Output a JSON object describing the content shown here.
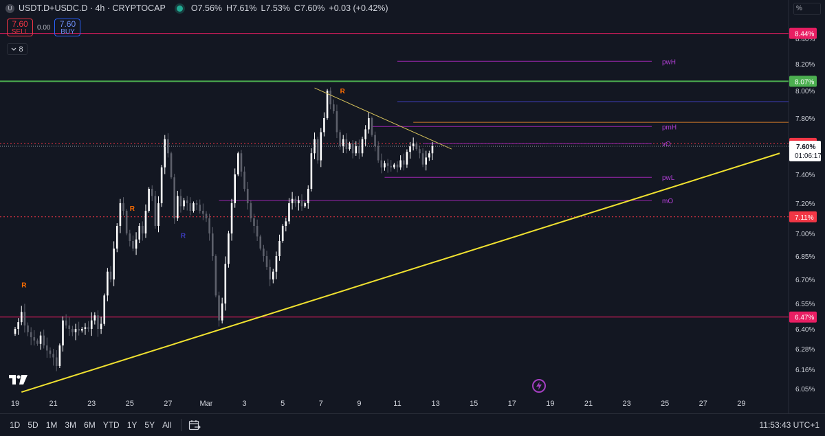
{
  "header": {
    "symbol_icon": "U",
    "title": "USDT.D+USDC.D · 4h · CRYPTOCAP",
    "ohlc": [
      {
        "k": "O",
        "v": "7.56%"
      },
      {
        "k": "H",
        "v": "7.61%"
      },
      {
        "k": "L",
        "v": "7.53%"
      },
      {
        "k": "C",
        "v": "7.60%"
      }
    ],
    "change": "+0.03 (+0.42%)",
    "change_color": "#d1d4dc",
    "live_color": "#22ab94"
  },
  "trade": {
    "sell_price": "7.60",
    "sell_label": "SELL",
    "spread": "0.00",
    "buy_price": "7.60",
    "buy_label": "BUY"
  },
  "indicators_count": "8",
  "scale_mode": "%",
  "bottom_bar": {
    "timeframes": [
      "1D",
      "5D",
      "1M",
      "3M",
      "6M",
      "YTD",
      "1Y",
      "5Y",
      "All"
    ],
    "clock": "11:53:43 UTC+1"
  },
  "chart_data": {
    "type": "candlestick",
    "y_unit": "%",
    "y_ticks": [
      6.05,
      6.16,
      6.28,
      6.4,
      6.55,
      6.7,
      6.85,
      7.0,
      7.2,
      7.4,
      7.6,
      7.8,
      8.0,
      8.2,
      8.4
    ],
    "y_tick_labels": [
      "6.05%",
      "6.16%",
      "6.28%",
      "6.40%",
      "6.55%",
      "6.70%",
      "6.85%",
      "7.00%",
      "7.20%",
      "7.40%",
      "7.60%",
      "7.80%",
      "8.00%",
      "8.20%",
      "8.40%"
    ],
    "x_tick_labels": [
      "19",
      "21",
      "23",
      "25",
      "27",
      "Mar",
      "3",
      "5",
      "7",
      "9",
      "11",
      "13",
      "15",
      "17",
      "19",
      "21",
      "23",
      "25",
      "27",
      "29"
    ],
    "x_ticks_bar": [
      0,
      12,
      24,
      36,
      48,
      60,
      72,
      84,
      96,
      108,
      120,
      132,
      144,
      156,
      168,
      180,
      192,
      204,
      216,
      228
    ],
    "bars_per_day": 6,
    "closes": [
      6.4,
      6.44,
      6.5,
      6.42,
      6.38,
      6.35,
      6.33,
      6.31,
      6.36,
      6.3,
      6.27,
      6.25,
      6.23,
      6.18,
      6.3,
      6.45,
      6.42,
      6.4,
      6.38,
      6.4,
      6.39,
      6.4,
      6.41,
      6.4,
      6.45,
      6.48,
      6.4,
      6.43,
      6.6,
      6.75,
      6.7,
      6.9,
      7.05,
      7.2,
      7.15,
      7.0,
      6.95,
      6.9,
      6.96,
      7.05,
      7.0,
      7.15,
      7.3,
      7.25,
      7.05,
      7.2,
      7.45,
      7.65,
      7.55,
      7.38,
      7.1,
      7.25,
      7.18,
      7.22,
      7.2,
      7.15,
      7.2,
      7.19,
      7.15,
      7.13,
      7.1,
      7.0,
      6.85,
      6.6,
      6.45,
      6.55,
      6.8,
      7.0,
      7.2,
      7.4,
      7.55,
      7.42,
      7.3,
      7.2,
      7.1,
      7.05,
      6.98,
      6.9,
      6.85,
      6.78,
      6.7,
      6.75,
      6.85,
      6.95,
      7.05,
      7.08,
      7.2,
      7.23,
      7.2,
      7.22,
      7.18,
      7.2,
      7.3,
      7.55,
      7.65,
      7.5,
      7.7,
      7.8,
      8.0,
      7.9,
      7.85,
      7.7,
      7.6,
      7.65,
      7.58,
      7.62,
      7.55,
      7.6,
      7.55,
      7.65,
      7.72,
      7.8,
      7.68,
      7.6,
      7.5,
      7.45,
      7.48,
      7.46,
      7.45,
      7.47,
      7.45,
      7.5,
      7.47,
      7.56,
      7.6,
      7.62,
      7.58,
      7.55,
      7.47,
      7.52,
      7.55,
      7.6
    ],
    "lines": [
      {
        "name": "8.44%",
        "value": 8.44,
        "color": "#e91e63",
        "style": "solid"
      },
      {
        "name": "8.07%",
        "value": 8.07,
        "color": "#4caf50",
        "style": "solid"
      },
      {
        "name": "7.62%",
        "value": 7.62,
        "color": "#f23645",
        "style": "dotted"
      },
      {
        "name": "7.11%",
        "value": 7.11,
        "color": "#f23645",
        "style": "dotted"
      },
      {
        "name": "6.47%",
        "value": 6.47,
        "color": "#e91e63",
        "style": "solid"
      }
    ],
    "levels": [
      {
        "label": "pwH",
        "value": 8.22,
        "color": "#9c27b0"
      },
      {
        "label": "pmH",
        "value": 7.74,
        "color": "#9c27b0"
      },
      {
        "label": "vO",
        "value": 7.62,
        "color": "#9c27b0"
      },
      {
        "label": "pwL",
        "value": 7.38,
        "color": "#9c27b0"
      },
      {
        "label": "mO",
        "value": 7.22,
        "color": "#9c27b0"
      }
    ],
    "price_badges": [
      {
        "text": "8.44%",
        "value": 8.44,
        "bg": "#e91e63"
      },
      {
        "text": "8.07%",
        "value": 8.07,
        "bg": "#4caf50"
      },
      {
        "text": "7.62%",
        "value": 7.62,
        "bg": "#f23645"
      },
      {
        "text": "7.11%",
        "value": 7.11,
        "bg": "#f23645"
      },
      {
        "text": "6.47%",
        "value": 6.47,
        "bg": "#e91e63"
      }
    ],
    "current_price": {
      "text": "7.60%",
      "countdown": "01:06:17",
      "value": 7.6
    },
    "trendlines": [
      {
        "name": "ascending support",
        "from": {
          "bar": 2,
          "value": 6.03
        },
        "to": {
          "bar": 240,
          "value": 7.55
        },
        "color": "#f0e130"
      },
      {
        "name": "descending resistance",
        "from": {
          "bar": 94,
          "value": 8.02
        },
        "to": {
          "bar": 137,
          "value": 7.58
        },
        "color": "#d4c05a"
      }
    ],
    "markers": [
      {
        "text": "R",
        "bar": 2,
        "value": 6.65,
        "color": "#ff6d00"
      },
      {
        "text": "R",
        "bar": 36,
        "value": 7.15,
        "color": "#ff6d00"
      },
      {
        "text": "R",
        "bar": 52,
        "value": 6.97,
        "color": "#3d3dbf"
      },
      {
        "text": "R",
        "bar": 102,
        "value": 7.98,
        "color": "#ff6d00"
      }
    ]
  }
}
